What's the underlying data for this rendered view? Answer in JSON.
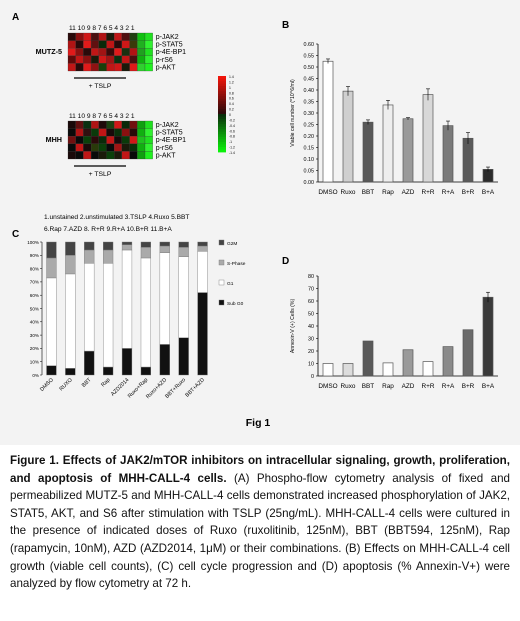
{
  "panel_a": {
    "label": "A",
    "column_numbers": "11 10 9 8 7 6 5 4 3 2 1",
    "markers": [
      "p-JAK2",
      "p-STAT5",
      "p-4E-BP1",
      "p-rS6",
      "p-AKT"
    ],
    "blocks": [
      {
        "cell_line": "MUTZ-5",
        "treatment_label": "+ TSLP",
        "cells": [
          [
            "#2a0a0a",
            "#8a1010",
            "#d01818",
            "#4a1010",
            "#b01414",
            "#1a1a0a",
            "#c01616",
            "#501010",
            "#204010",
            "#10c010",
            "#20e020"
          ],
          [
            "#b01414",
            "#2a0a0a",
            "#e01a1a",
            "#601010",
            "#0a2a0a",
            "#c01616",
            "#2a0a0a",
            "#d01818",
            "#3a3a0a",
            "#20b020",
            "#30f030"
          ],
          [
            "#e01a1a",
            "#8a1010",
            "#2a0a0a",
            "#c01616",
            "#a01414",
            "#3a0a0a",
            "#e01a1a",
            "#1a3010",
            "#b01414",
            "#20a020",
            "#20e020"
          ],
          [
            "#600a0a",
            "#c01616",
            "#8a1010",
            "#1a1a0a",
            "#d01818",
            "#a01414",
            "#0a3010",
            "#c01616",
            "#4a1010",
            "#10b010",
            "#30f030"
          ],
          [
            "#c01616",
            "#2a0a0a",
            "#e01a1a",
            "#901212",
            "#1a400a",
            "#c01616",
            "#d01818",
            "#1a1a0a",
            "#e01a1a",
            "#30d030",
            "#20f020"
          ]
        ]
      },
      {
        "cell_line": "MHH",
        "treatment_label": "+ TSLP",
        "cells": [
          [
            "#1a0a0a",
            "#601010",
            "#0a3010",
            "#b01414",
            "#200a0a",
            "#1a4010",
            "#d01818",
            "#0a2a0a",
            "#701010",
            "#10a010",
            "#20e020"
          ],
          [
            "#0a0a0a",
            "#b01414",
            "#301010",
            "#0a3a0a",
            "#c01616",
            "#1a0a0a",
            "#0a300a",
            "#8a1010",
            "#2a0a0a",
            "#10b010",
            "#30f030"
          ],
          [
            "#701010",
            "#0a0a0a",
            "#0a400a",
            "#2a0a0a",
            "#0a2a0a",
            "#c01616",
            "#1a0a0a",
            "#0a3a0a",
            "#d01818",
            "#20c020",
            "#20e020"
          ],
          [
            "#0a0a0a",
            "#c01616",
            "#1a0a0a",
            "#2a3a0a",
            "#0a400a",
            "#0a0a0a",
            "#a01414",
            "#1a1a0a",
            "#0a300a",
            "#10b010",
            "#30f030"
          ],
          [
            "#1a0a0a",
            "#0a0a0a",
            "#c01616",
            "#0a0a0a",
            "#1a1a0a",
            "#0a400a",
            "#1a1a0a",
            "#c01616",
            "#0a0a0a",
            "#10a010",
            "#20f020"
          ]
        ]
      }
    ],
    "legend_ticks": [
      "1.4",
      "1.2",
      "1",
      "0.8",
      "0.6",
      "0.4",
      "0.2",
      "0",
      "-0.2",
      "-0.4",
      "-0.6",
      "-0.8",
      "-1",
      "-1.2",
      "-1.4"
    ],
    "key_lines": [
      "1.unstained 2.unstimulated 3.TSLP 4.Ruxo 5.BBT",
      "6.Rap 7.AZD 8. R+R 9.R+A 10.B+R 11.B+A"
    ]
  },
  "chart_data": [
    {
      "panel": "B",
      "type": "bar",
      "categories": [
        "DMSO",
        "Ruxo",
        "BBT",
        "Rap",
        "AZD",
        "R+R",
        "R+A",
        "B+R",
        "B+A"
      ],
      "values": [
        0.525,
        0.395,
        0.26,
        0.335,
        0.275,
        0.38,
        0.245,
        0.19,
        0.055
      ],
      "errors": [
        0.01,
        0.02,
        0.01,
        0.02,
        0.005,
        0.025,
        0.02,
        0.025,
        0.01
      ],
      "colors": [
        "#ffffff",
        "#cfcfcf",
        "#585858",
        "#eeeeee",
        "#9a9a9a",
        "#d8d8d8",
        "#7a7a7a",
        "#5a5a5a",
        "#2a2a2a"
      ],
      "ylabel": "Viable cell number (*10^6/ml)",
      "ylim": [
        0,
        0.6
      ],
      "yticks": [
        "0.00",
        "0.05",
        "0.10",
        "0.15",
        "0.20",
        "0.25",
        "0.30",
        "0.35",
        "0.40",
        "0.45",
        "0.50",
        "0.55",
        "0.60"
      ]
    },
    {
      "panel": "C",
      "type": "bar",
      "stacked": true,
      "categories": [
        "DMSO",
        "RUXO",
        "BBT",
        "Rap",
        "AZD2014",
        "Ruxo+Rap",
        "Ruxo+AZD",
        "BBT+Ruxo",
        "BBT+AZD"
      ],
      "series": [
        {
          "name": "Sub G0",
          "color": "#111111",
          "values": [
            7,
            5,
            18,
            6,
            20,
            6,
            23,
            28,
            62
          ]
        },
        {
          "name": "G1",
          "color": "#ffffff",
          "values": [
            66,
            71,
            66,
            78,
            74,
            82,
            69,
            61,
            31
          ]
        },
        {
          "name": "S-Phase",
          "color": "#aaaaaa",
          "values": [
            15,
            14,
            10,
            10,
            4,
            8,
            5,
            7,
            4
          ]
        },
        {
          "name": "G2M",
          "color": "#444444",
          "values": [
            12,
            10,
            6,
            6,
            2,
            4,
            3,
            4,
            3
          ]
        }
      ],
      "ylim": [
        0,
        100
      ],
      "yticks": [
        "0%",
        "10%",
        "20%",
        "30%",
        "40%",
        "50%",
        "60%",
        "70%",
        "80%",
        "90%",
        "100%"
      ]
    },
    {
      "panel": "D",
      "type": "bar",
      "categories": [
        "DMSO",
        "Ruxo",
        "BBT",
        "Rap",
        "AZD",
        "R+R",
        "R+A",
        "B+R",
        "B+A"
      ],
      "values": [
        10,
        10,
        28,
        10.5,
        21,
        11.5,
        23.5,
        37,
        63
      ],
      "errors": [
        0,
        0,
        0,
        0,
        0,
        0,
        0,
        0,
        4
      ],
      "colors": [
        "#ffffff",
        "#dcdcdc",
        "#595959",
        "#ffffff",
        "#9a9a9a",
        "#ffffff",
        "#8a8a8a",
        "#6a6a6a",
        "#3a3a3a"
      ],
      "ylabel": "Annexin-V (+) Cells (%)",
      "ylim": [
        0,
        80
      ],
      "yticks": [
        "0",
        "10",
        "20",
        "30",
        "40",
        "50",
        "60",
        "70",
        "80"
      ]
    }
  ],
  "fig_label": "Fig 1",
  "caption": {
    "title": "Figure 1. Effects of JAK2/mTOR inhibitors on intracellular signaling, growth, proliferation, and apoptosis of MHH-CALL-4 cells.",
    "body": " (A) Phospho-flow cytometry analysis of fixed and permeabilized MUTZ-5 and MHH-CALL-4 cells demonstrated increased phosphorylation of JAK2, STAT5, AKT, and S6 after stimulation with TSLP (25ng/mL). MHH-CALL-4 cells were cultured in the presence of indicated doses of Ruxo (ruxolitinib, 125nM), BBT (BBT594, 125nM), Rap (rapamycin, 10nM), AZD (AZD2014, 1μM) or their combinations. (B) Effects on MHH-CALL-4 cell growth (viable cell counts), (C) cell cycle progression and (D) apoptosis (% Annexin-V+) were analyzed by flow cytometry at 72 h."
  }
}
